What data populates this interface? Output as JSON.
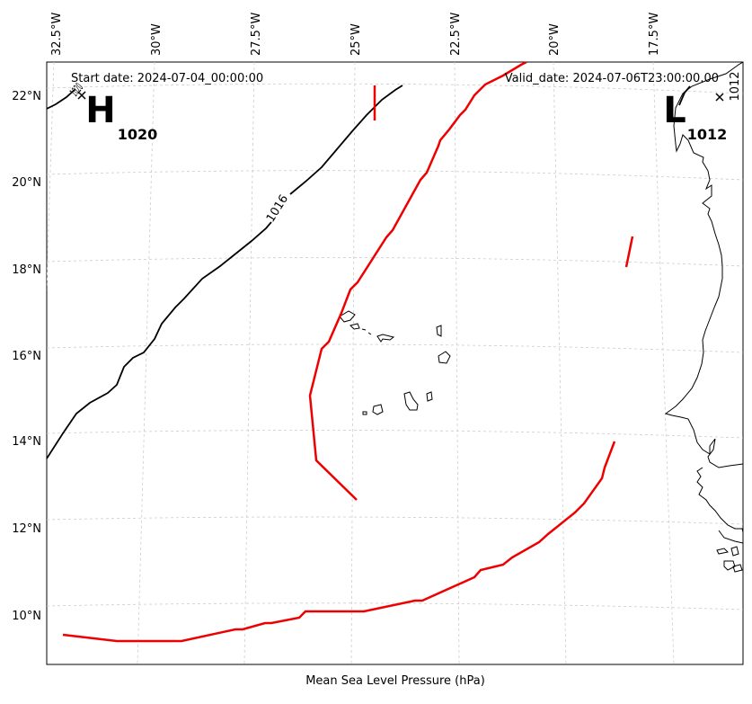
{
  "info": {
    "start_label": "Start date: 2024-07-04_00:00:00",
    "valid_label": "Valid_date: 2024-07-06T23:00:00.00",
    "caption": "Mean Sea Level Pressure (hPa)"
  },
  "axes": {
    "lon_ticks": [
      "32.5°W",
      "30°W",
      "27.5°W",
      "25°W",
      "22.5°W",
      "20°W",
      "17.5°W"
    ],
    "lat_ticks": [
      "22°N",
      "20°N",
      "18°N",
      "16°N",
      "14°N",
      "12°N",
      "10°N"
    ]
  },
  "pressure_centers": [
    {
      "symbol": "H",
      "value": "1020"
    },
    {
      "symbol": "L",
      "value": "1012"
    }
  ],
  "isobar_labels": [
    "1016",
    "1012",
    "1020"
  ],
  "colors": {
    "isobar": "#000000",
    "contour_highlight": "#ee0000",
    "grid": "#cccccc",
    "coast": "#000000"
  }
}
